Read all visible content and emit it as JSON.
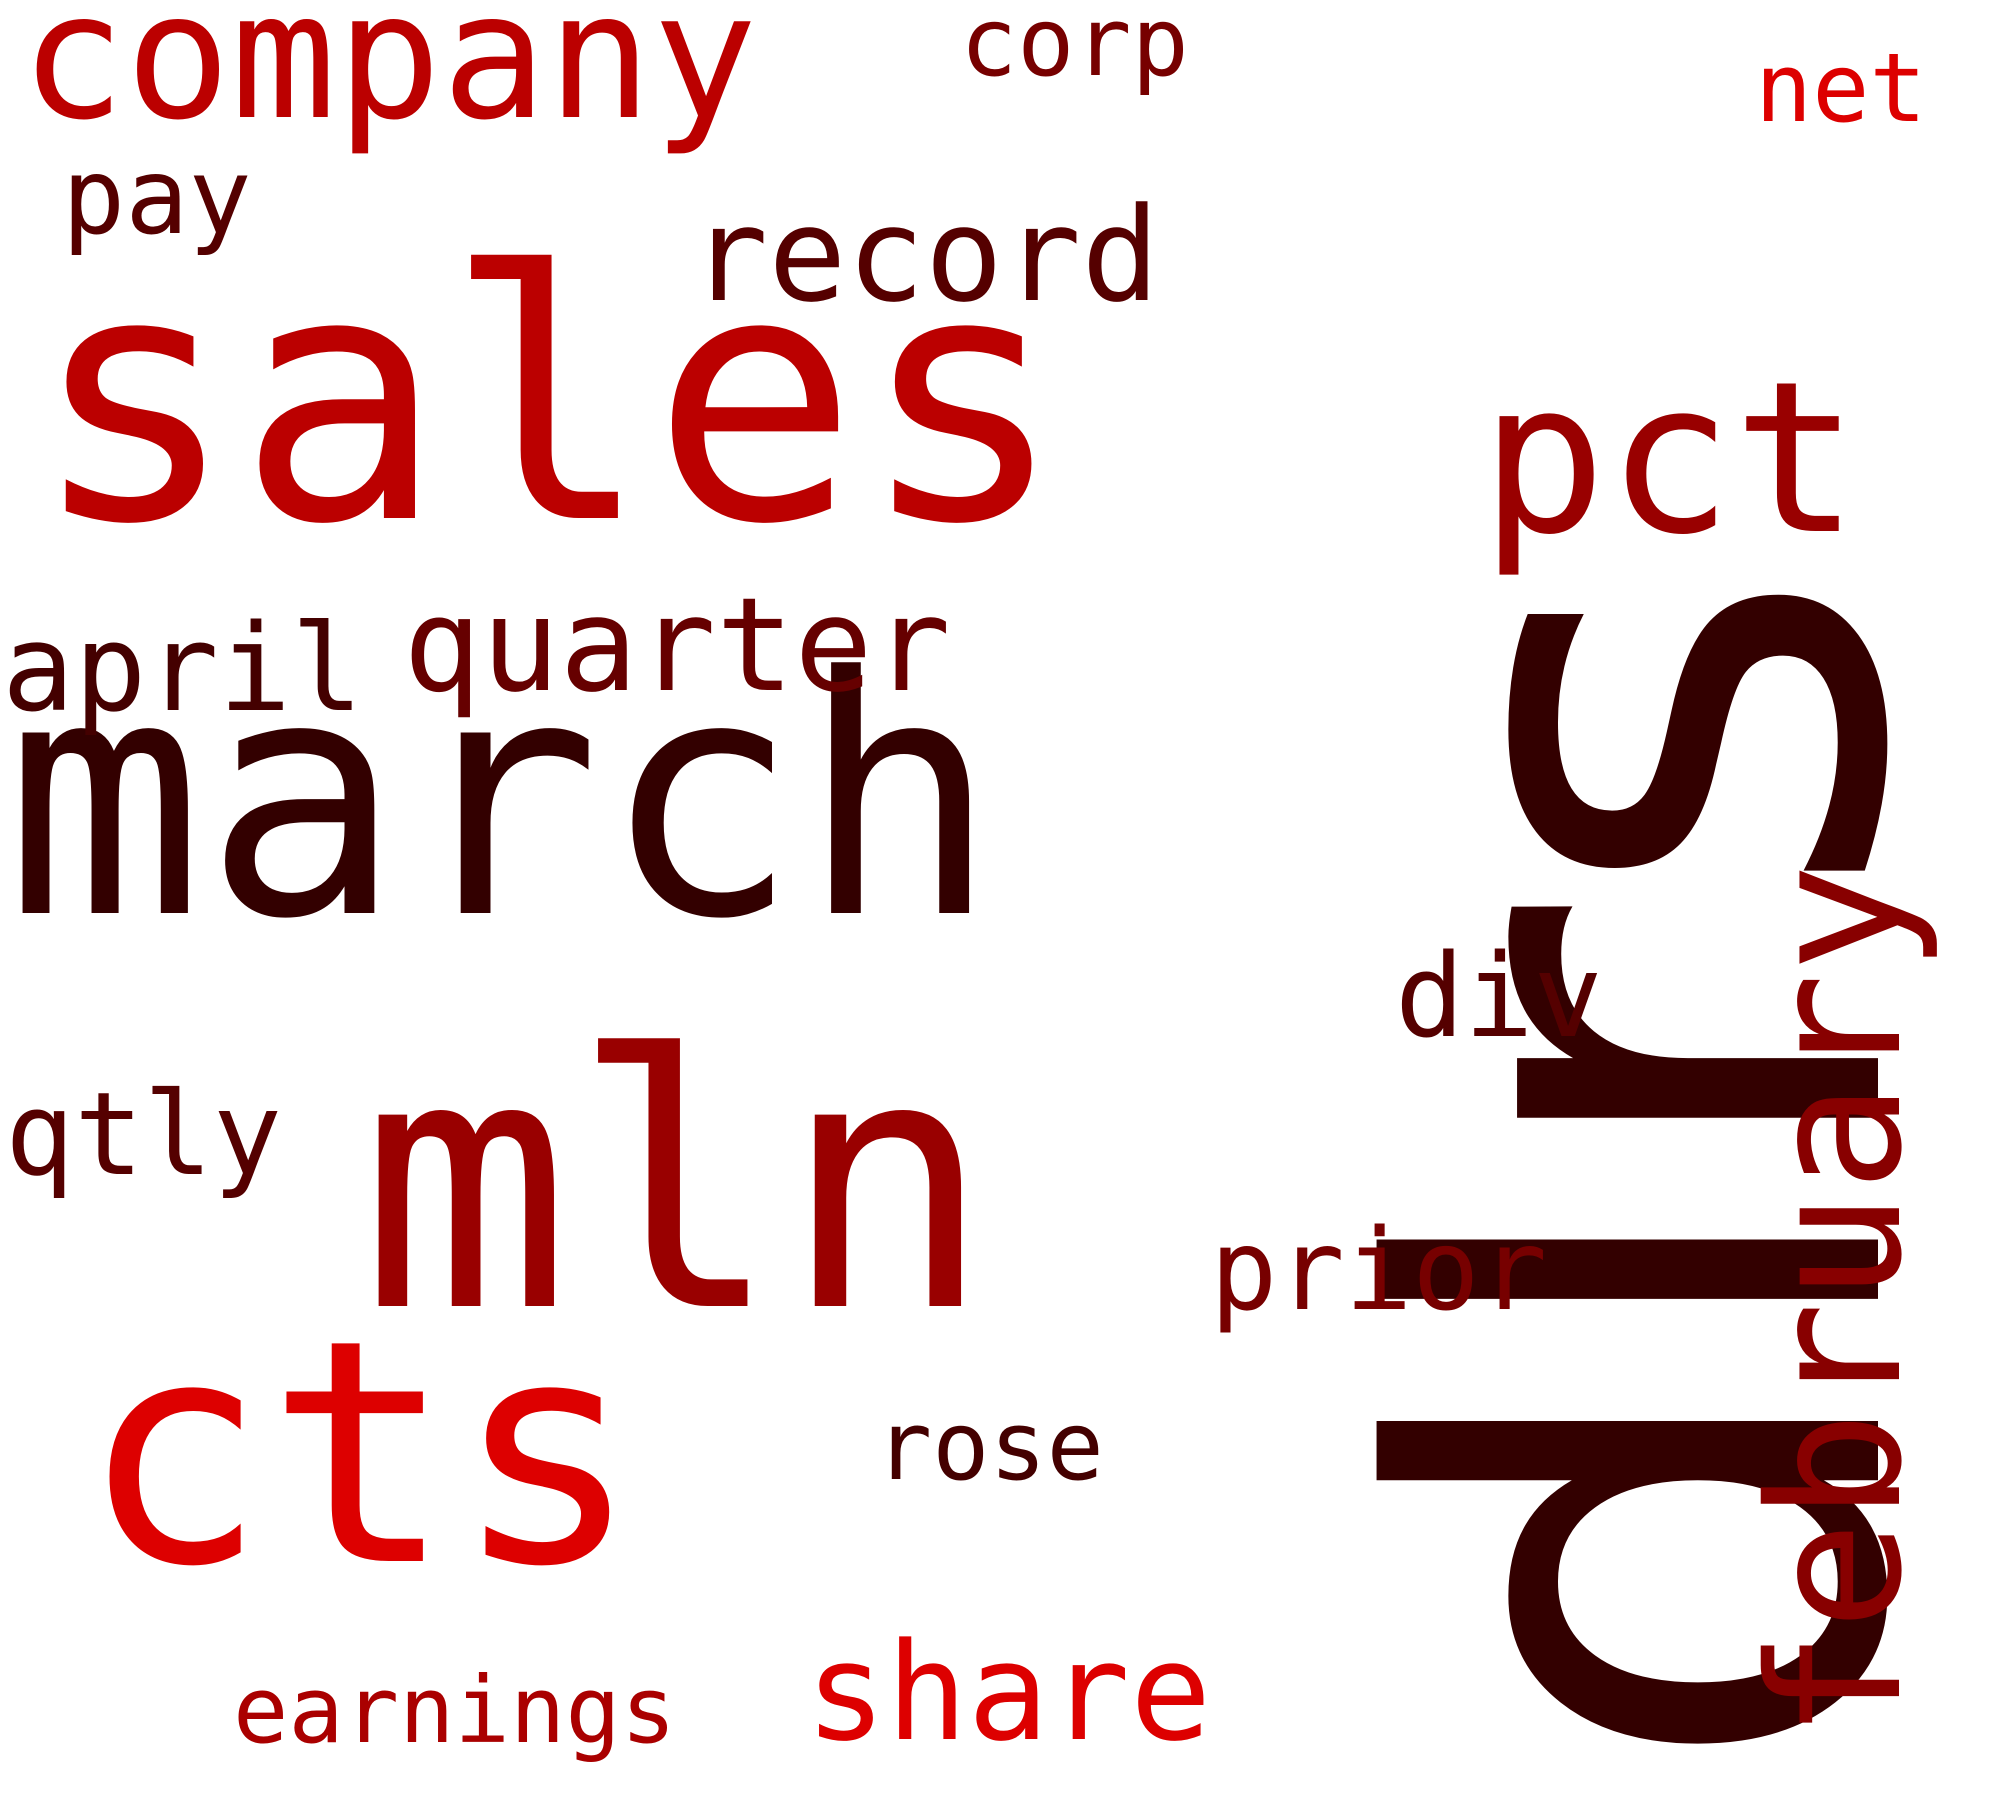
{
  "words": {
    "dlrs": {
      "text": "dlrs",
      "color": "#330000"
    },
    "march": {
      "text": "march",
      "color": "#330000"
    },
    "sales": {
      "text": "sales",
      "color": "#bb0000"
    },
    "mln": {
      "text": "mln",
      "color": "#990000"
    },
    "cts": {
      "text": "cts",
      "color": "#dd0000"
    },
    "company": {
      "text": "company",
      "color": "#bb0000"
    },
    "february": {
      "text": "february",
      "color": "#880000"
    },
    "pct": {
      "text": "pct",
      "color": "#990000"
    },
    "quarter": {
      "text": "quarter",
      "color": "#660000"
    },
    "april": {
      "text": "april",
      "color": "#440000"
    },
    "record": {
      "text": "record",
      "color": "#550000"
    },
    "share": {
      "text": "share",
      "color": "#dd0000"
    },
    "qtly": {
      "text": "qtly",
      "color": "#550000"
    },
    "prior": {
      "text": "prior",
      "color": "#770000"
    },
    "earnings": {
      "text": "earnings",
      "color": "#aa0000"
    },
    "div": {
      "text": "div",
      "color": "#550000"
    },
    "pay": {
      "text": "pay",
      "color": "#550000"
    },
    "rose": {
      "text": "rose",
      "color": "#440000"
    },
    "corp": {
      "text": "corp",
      "color": "#770000"
    },
    "net": {
      "text": "net",
      "color": "#dd0000"
    }
  }
}
